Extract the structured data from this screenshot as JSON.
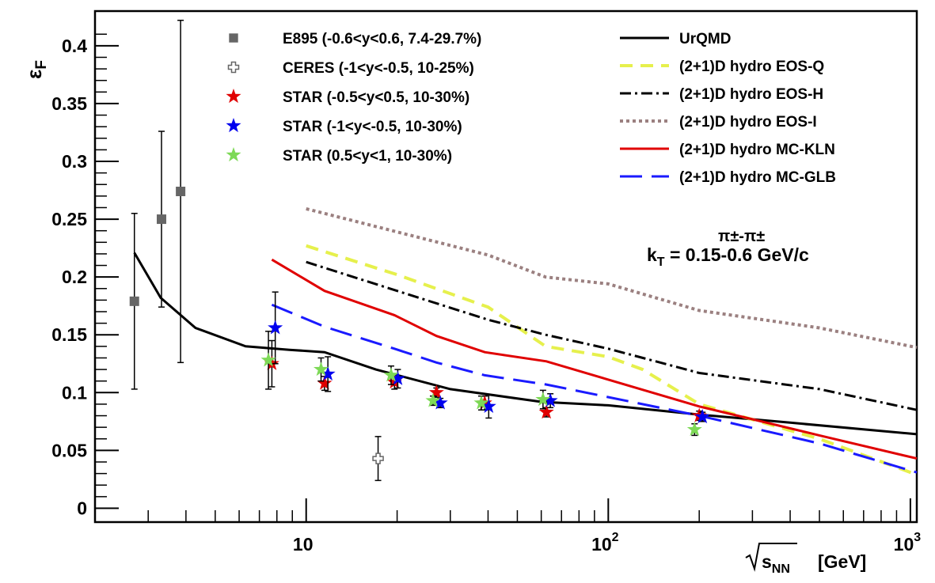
{
  "chart_data": {
    "type": "scatter",
    "x_scale": "log",
    "xlim": [
      2.0,
      1050
    ],
    "ylim": [
      -0.012,
      0.43
    ],
    "grid": false,
    "ylabel": "ε",
    "ylabel_sub": "F",
    "xlabel": "s",
    "xlabel_sub": "NN",
    "xlabel_unit": "[GeV]",
    "y_ticks": [
      {
        "value": 0,
        "label": "0"
      },
      {
        "value": 0.05,
        "label": "0.05"
      },
      {
        "value": 0.1,
        "label": "0.1"
      },
      {
        "value": 0.15,
        "label": "0.15"
      },
      {
        "value": 0.2,
        "label": "0.2"
      },
      {
        "value": 0.25,
        "label": "0.25"
      },
      {
        "value": 0.3,
        "label": "0.3"
      },
      {
        "value": 0.35,
        "label": "0.35"
      },
      {
        "value": 0.4,
        "label": "0.4"
      }
    ],
    "x_ticks": [
      {
        "value": 10,
        "base": "10",
        "exp": ""
      },
      {
        "value": 100,
        "base": "10",
        "exp": "2"
      },
      {
        "value": 1000,
        "base": "10",
        "exp": "3"
      }
    ],
    "annotation": {
      "line1": "π±-π±",
      "prefix": "k",
      "sub": "T",
      "suffix": " = 0.15-0.6 GeV/c"
    },
    "series": [
      {
        "name": "E895 (-0.6<y<0.6, 7.4-29.7%)",
        "marker": "square",
        "color": "#666666",
        "points": [
          {
            "x": 2.7,
            "y": 0.179,
            "err": 0.076
          },
          {
            "x": 3.32,
            "y": 0.25,
            "err": 0.076
          },
          {
            "x": 3.84,
            "y": 0.274,
            "err": 0.148
          }
        ]
      },
      {
        "name": "CERES (-1<y<-0.5, 10-25%)",
        "marker": "open-cross",
        "color": "#666666",
        "points": [
          {
            "x": 17.3,
            "y": 0.043,
            "err": 0.019
          }
        ]
      },
      {
        "name": "STAR (-0.5<y<0.5, 10-30%)",
        "marker": "star",
        "color": "#e00000",
        "points": [
          {
            "x": 7.7,
            "y": 0.125,
            "err": 0.02
          },
          {
            "x": 11.5,
            "y": 0.108,
            "err": 0.006
          },
          {
            "x": 19.6,
            "y": 0.109,
            "err": 0.006
          },
          {
            "x": 27,
            "y": 0.1,
            "err": 0.004
          },
          {
            "x": 39,
            "y": 0.091,
            "err": 0.006
          },
          {
            "x": 62.4,
            "y": 0.083,
            "err": 0.004
          },
          {
            "x": 200,
            "y": 0.08,
            "err": 0.004
          }
        ]
      },
      {
        "name": "STAR (-1<y<-0.5, 10-30%)",
        "marker": "star",
        "color": "#0000ee",
        "points": [
          {
            "x": 7.9,
            "y": 0.156,
            "err": 0.031
          },
          {
            "x": 11.8,
            "y": 0.116,
            "err": 0.015
          },
          {
            "x": 20.1,
            "y": 0.112,
            "err": 0.008
          },
          {
            "x": 27.8,
            "y": 0.091,
            "err": 0.004
          },
          {
            "x": 40.2,
            "y": 0.088,
            "err": 0.01
          },
          {
            "x": 64.3,
            "y": 0.093,
            "err": 0.006
          },
          {
            "x": 205,
            "y": 0.079,
            "err": 0.004
          }
        ]
      },
      {
        "name": "STAR (0.5<y<1, 10-30%)",
        "marker": "star",
        "color": "#7ed957",
        "points": [
          {
            "x": 7.5,
            "y": 0.128,
            "err": 0.025
          },
          {
            "x": 11.2,
            "y": 0.12,
            "err": 0.01
          },
          {
            "x": 19.1,
            "y": 0.115,
            "err": 0.008
          },
          {
            "x": 26.3,
            "y": 0.093,
            "err": 0.004
          },
          {
            "x": 38,
            "y": 0.091,
            "err": 0.006
          },
          {
            "x": 60.8,
            "y": 0.094,
            "err": 0.008
          },
          {
            "x": 193,
            "y": 0.068,
            "err": 0.005
          }
        ]
      }
    ],
    "curves": [
      {
        "name": "UrQMD",
        "color": "#000000",
        "dash": "",
        "points": [
          [
            2.7,
            0.221
          ],
          [
            3.3,
            0.182
          ],
          [
            4.3,
            0.156
          ],
          [
            6.3,
            0.14
          ],
          [
            8.8,
            0.137
          ],
          [
            11.5,
            0.135
          ],
          [
            17,
            0.12
          ],
          [
            30,
            0.103
          ],
          [
            60,
            0.092
          ],
          [
            100,
            0.089
          ],
          [
            200,
            0.081
          ],
          [
            400,
            0.074
          ],
          [
            1050,
            0.064
          ]
        ]
      },
      {
        "name": "(2+1)D hydro EOS-Q",
        "color": "#e6f04c",
        "dash": "16,10",
        "points": [
          [
            10,
            0.227
          ],
          [
            20,
            0.202
          ],
          [
            40,
            0.174
          ],
          [
            62,
            0.14
          ],
          [
            100,
            0.131
          ],
          [
            130,
            0.12
          ],
          [
            200,
            0.09
          ],
          [
            500,
            0.06
          ],
          [
            1050,
            0.029
          ]
        ]
      },
      {
        "name": "(2+1)D hydro EOS-H",
        "color": "#000000",
        "dash": "14,5,3,5",
        "points": [
          [
            10,
            0.213
          ],
          [
            20,
            0.188
          ],
          [
            40,
            0.163
          ],
          [
            62,
            0.15
          ],
          [
            100,
            0.138
          ],
          [
            200,
            0.117
          ],
          [
            500,
            0.103
          ],
          [
            1050,
            0.085
          ]
        ]
      },
      {
        "name": "(2+1)D hydro EOS-I",
        "color": "#9b8080",
        "dash": "4,4",
        "points": [
          [
            10,
            0.259
          ],
          [
            20,
            0.239
          ],
          [
            40,
            0.219
          ],
          [
            62,
            0.2
          ],
          [
            100,
            0.194
          ],
          [
            200,
            0.171
          ],
          [
            500,
            0.156
          ],
          [
            1050,
            0.139
          ]
        ]
      },
      {
        "name": "(2+1)D hydro MC-KLN",
        "color": "#e00000",
        "dash": "",
        "points": [
          [
            7.7,
            0.215
          ],
          [
            11.5,
            0.188
          ],
          [
            19.6,
            0.167
          ],
          [
            27,
            0.149
          ],
          [
            39,
            0.135
          ],
          [
            62.4,
            0.127
          ],
          [
            200,
            0.088
          ],
          [
            500,
            0.063
          ],
          [
            1050,
            0.043
          ]
        ]
      },
      {
        "name": "(2+1)D hydro MC-GLB",
        "color": "#1a1aff",
        "dash": "28,12",
        "points": [
          [
            7.7,
            0.176
          ],
          [
            11.5,
            0.157
          ],
          [
            19.6,
            0.138
          ],
          [
            27,
            0.126
          ],
          [
            39,
            0.115
          ],
          [
            62.4,
            0.107
          ],
          [
            200,
            0.08
          ],
          [
            500,
            0.056
          ],
          [
            1050,
            0.031
          ]
        ]
      }
    ]
  }
}
